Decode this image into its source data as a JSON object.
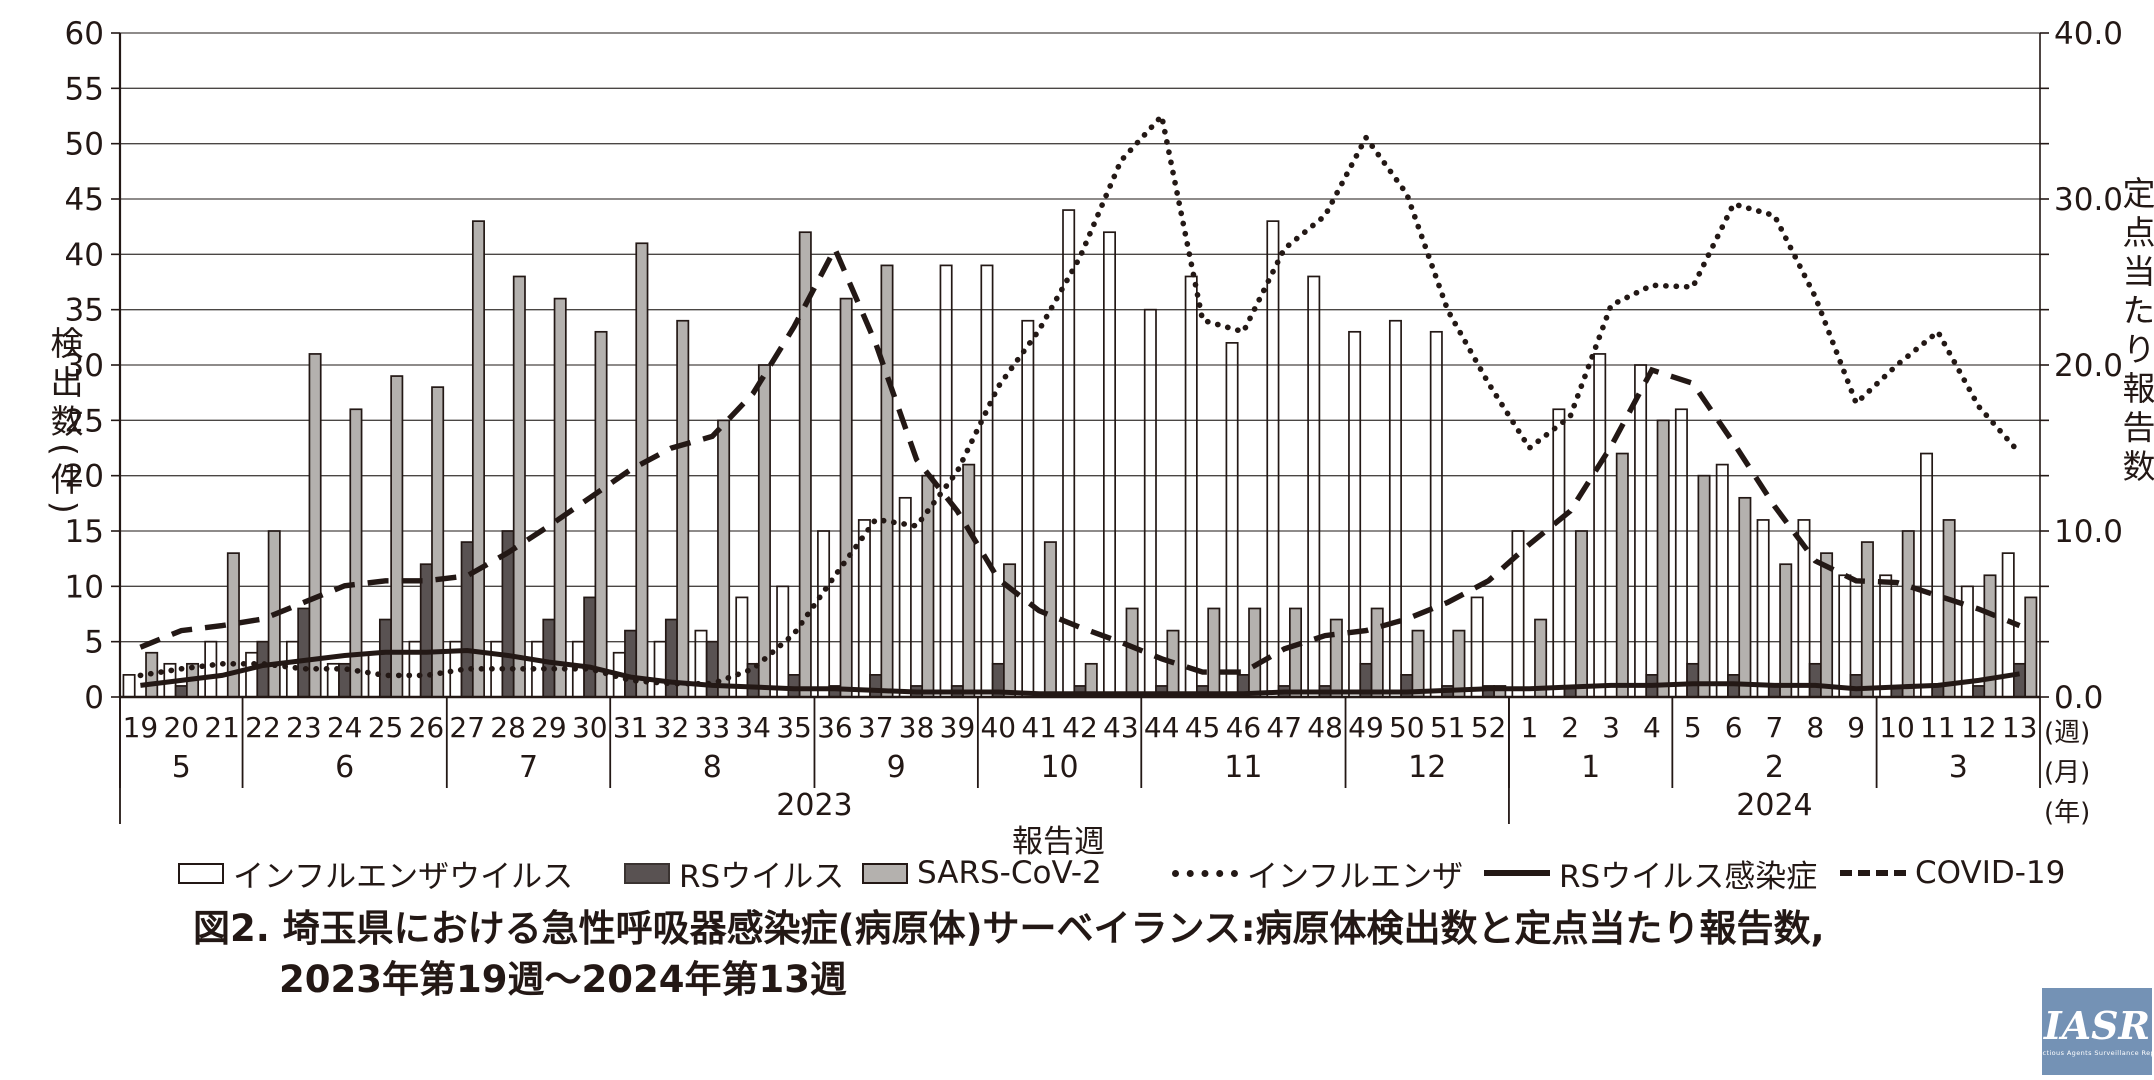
{
  "title": {
    "line1": "図2. 埼玉県における急性呼吸器感染症(病原体)サーベイランス:病原体検出数と定点当たり報告数,",
    "line2": "2023年第19週〜2024年第13週"
  },
  "axes": {
    "left_title": "検出数(件)",
    "right_title": "定点当たり報告数",
    "x_title": "報告週",
    "left_ticks": [
      "0",
      "5",
      "10",
      "15",
      "20",
      "25",
      "30",
      "35",
      "40",
      "45",
      "50",
      "55",
      "60"
    ],
    "right_ticks": [
      "0.0",
      "10.0",
      "20.0",
      "30.0",
      "40.0"
    ],
    "unit_labels": [
      "(週)",
      "(月)",
      "(年)"
    ]
  },
  "legend": {
    "items": [
      {
        "label": "インフルエンザウイルス",
        "swatch": "bar-white"
      },
      {
        "label": "RSウイルス",
        "swatch": "bar-dark"
      },
      {
        "label": "SARS-CoV-2",
        "swatch": "bar-gray"
      },
      {
        "label": "インフルエンザ",
        "swatch": "line-dotted"
      },
      {
        "label": "RSウイルス感染症",
        "swatch": "line-solid"
      },
      {
        "label": "COVID-19",
        "swatch": "line-dashed"
      }
    ]
  },
  "logo": {
    "text": "IASR",
    "caption": "Infectious Agents Surveillance Report"
  },
  "colors": {
    "ink": "#231815",
    "grid": "#4a4644",
    "bar_white_fill": "none",
    "bar_dark_fill": "#595252",
    "bar_gray_fill": "#b4b1ae",
    "logo_bg": "#7492b5"
  },
  "chart_data": {
    "type": "bar+line",
    "title": "埼玉県における急性呼吸器感染症(病原体)サーベイランス:病原体検出数と定点当たり報告数, 2023年第19週〜2024年第13週",
    "xlabel": "報告週",
    "ylabel_left": "検出数(件)",
    "ylabel_right": "定点当たり報告数",
    "left_axis": {
      "range": [
        0,
        60
      ],
      "step": 5
    },
    "right_axis": {
      "range": [
        0.0,
        40.0
      ],
      "step": 10.0
    },
    "grid": true,
    "x_weeks": [
      "19",
      "20",
      "21",
      "22",
      "23",
      "24",
      "25",
      "26",
      "27",
      "28",
      "29",
      "30",
      "31",
      "32",
      "33",
      "34",
      "35",
      "36",
      "37",
      "38",
      "39",
      "40",
      "41",
      "42",
      "43",
      "44",
      "45",
      "46",
      "47",
      "48",
      "49",
      "50",
      "51",
      "52",
      "1",
      "2",
      "3",
      "4",
      "5",
      "6",
      "7",
      "8",
      "9",
      "10",
      "11",
      "12",
      "13"
    ],
    "months": [
      {
        "label": "5",
        "weeks": 3
      },
      {
        "label": "6",
        "weeks": 5
      },
      {
        "label": "7",
        "weeks": 4
      },
      {
        "label": "8",
        "weeks": 5
      },
      {
        "label": "9",
        "weeks": 4
      },
      {
        "label": "10",
        "weeks": 4
      },
      {
        "label": "11",
        "weeks": 5
      },
      {
        "label": "12",
        "weeks": 4
      },
      {
        "label": "1",
        "weeks": 4
      },
      {
        "label": "2",
        "weeks": 5
      },
      {
        "label": "3",
        "weeks": 4
      }
    ],
    "years": [
      {
        "label": "2023",
        "weeks": 34
      },
      {
        "label": "2024",
        "weeks": 13
      }
    ],
    "bar_series": [
      {
        "name": "インフルエンザウイルス",
        "style": "white",
        "axis": "left",
        "values": [
          2,
          3,
          5,
          4,
          5,
          3,
          4,
          5,
          5,
          5,
          5,
          5,
          4,
          5,
          6,
          9,
          10,
          15,
          16,
          18,
          39,
          39,
          34,
          44,
          42,
          35,
          38,
          32,
          43,
          38,
          33,
          34,
          33,
          9,
          15,
          26,
          31,
          30,
          26,
          21,
          16,
          16,
          11,
          11,
          22,
          10,
          13
        ]
      },
      {
        "name": "RSウイルス",
        "style": "dark",
        "axis": "left",
        "values": [
          0,
          1,
          0,
          5,
          8,
          3,
          7,
          12,
          14,
          15,
          7,
          9,
          6,
          7,
          5,
          3,
          2,
          1,
          2,
          1,
          1,
          3,
          0,
          1,
          0,
          1,
          1,
          2,
          1,
          1,
          3,
          2,
          1,
          1,
          0,
          1,
          0,
          2,
          3,
          2,
          1,
          3,
          2,
          1,
          1,
          1,
          3
        ]
      },
      {
        "name": "SARS-CoV-2",
        "style": "gray",
        "axis": "left",
        "values": [
          4,
          3,
          13,
          15,
          31,
          26,
          29,
          28,
          43,
          38,
          36,
          33,
          41,
          34,
          25,
          30,
          42,
          36,
          39,
          20,
          21,
          12,
          14,
          3,
          8,
          6,
          8,
          8,
          8,
          7,
          8,
          6,
          6,
          1,
          7,
          15,
          22,
          25,
          20,
          18,
          12,
          13,
          14,
          15,
          16,
          11,
          9
        ]
      }
    ],
    "line_series": [
      {
        "name": "インフルエンザ",
        "style": "dotted",
        "axis": "right",
        "values": [
          1.3,
          1.7,
          2.0,
          2.0,
          1.7,
          1.7,
          1.3,
          1.3,
          1.7,
          1.7,
          1.7,
          1.7,
          1.0,
          0.8,
          0.8,
          1.7,
          3.8,
          7.3,
          10.7,
          10.3,
          13.6,
          18.7,
          22.1,
          26.5,
          32.3,
          35.0,
          22.7,
          22.0,
          27.0,
          29.0,
          33.7,
          30.3,
          23.3,
          18.9,
          15.0,
          16.9,
          23.6,
          24.8,
          24.7,
          29.7,
          29.0,
          24.1,
          17.7,
          20.0,
          22.0,
          17.5,
          14.7
        ]
      },
      {
        "name": "RSウイルス感染症",
        "style": "solid",
        "axis": "right",
        "values": [
          0.7,
          1.0,
          1.3,
          1.9,
          2.2,
          2.5,
          2.7,
          2.7,
          2.8,
          2.5,
          2.1,
          1.8,
          1.2,
          0.9,
          0.7,
          0.6,
          0.5,
          0.5,
          0.4,
          0.3,
          0.3,
          0.3,
          0.2,
          0.2,
          0.2,
          0.2,
          0.2,
          0.2,
          0.3,
          0.3,
          0.3,
          0.3,
          0.4,
          0.5,
          0.5,
          0.6,
          0.7,
          0.7,
          0.8,
          0.8,
          0.7,
          0.7,
          0.5,
          0.6,
          0.7,
          1.0,
          1.4
        ]
      },
      {
        "name": "COVID-19",
        "style": "dashed",
        "axis": "right",
        "values": [
          3.0,
          4.0,
          4.3,
          4.7,
          5.7,
          6.7,
          7.0,
          7.0,
          7.3,
          8.7,
          10.3,
          12.0,
          13.7,
          15.0,
          15.7,
          18.3,
          22.3,
          27.0,
          21.3,
          14.3,
          11.2,
          7.1,
          5.2,
          4.2,
          3.3,
          2.3,
          1.5,
          1.5,
          2.9,
          3.7,
          4.0,
          4.7,
          5.7,
          7.0,
          9.2,
          11.2,
          15.1,
          19.7,
          18.9,
          15.3,
          11.5,
          8.2,
          7.0,
          6.9,
          6.1,
          5.3,
          4.3
        ]
      }
    ]
  }
}
